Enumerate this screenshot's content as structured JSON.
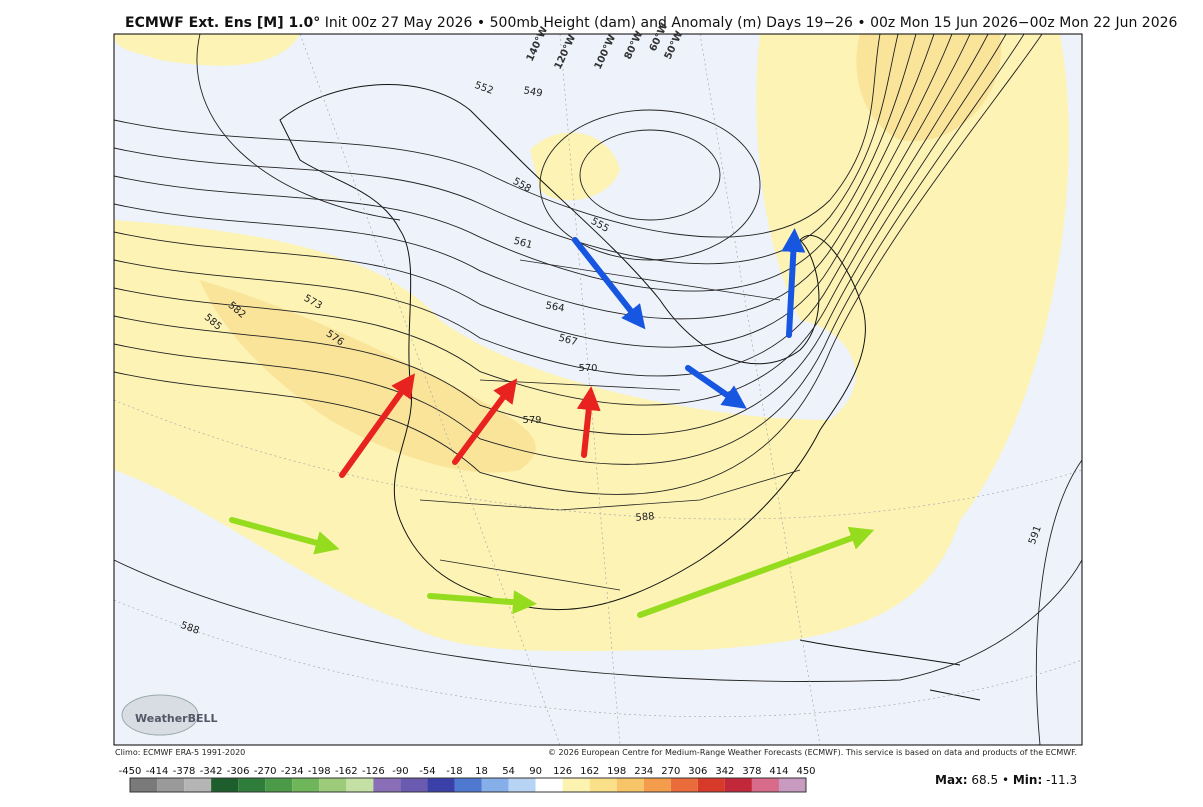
{
  "header": {
    "title_bold": "ECMWF Ext. Ens [M] 1.0°",
    "title_rest": "Init 00z 27 May 2026 • 500mb Height (dam) and Anomaly (m) Days 19−26 • 00z Mon 15 Jun 2026−00z Mon 22 Jun 2026"
  },
  "map": {
    "contour_labels": [
      552,
      549,
      558,
      555,
      561,
      564,
      567,
      570,
      573,
      576,
      579,
      582,
      585,
      588,
      588,
      591
    ],
    "longitude_labels": [
      "140°W",
      "120°W",
      "100°W",
      "80°W",
      "60°W",
      "50°W"
    ],
    "logo": "WeatherBELL"
  },
  "footer": {
    "climo": "Climo: ECMWF ERA-5 1991-2020",
    "copyright": "© 2026 European Centre for Medium-Range Weather Forecasts (ECMWF). This service is based on data and products of the ECMWF."
  },
  "colorbar": {
    "ticks": [
      -450,
      -414,
      -378,
      -342,
      -306,
      -270,
      -234,
      -198,
      -162,
      -126,
      -90,
      -54,
      -18,
      18,
      54,
      90,
      126,
      162,
      198,
      234,
      270,
      306,
      342,
      378,
      414,
      450
    ],
    "colors": [
      "#7a7a7a",
      "#9a9a9a",
      "#b5b5b5",
      "#1d5e2c",
      "#2e7d3a",
      "#4a9a47",
      "#6fb55a",
      "#9ccc7a",
      "#c4e0a4",
      "#8a6fb8",
      "#6a5ab0",
      "#3b3fa8",
      "#4f78d0",
      "#86aee8",
      "#b8d4f4",
      "#ffffff",
      "#fdf3b0",
      "#fbe08a",
      "#f7c468",
      "#f29c4c",
      "#ea6c3a",
      "#d83a2a",
      "#c2273a",
      "#d86a8a",
      "#c89ac0"
    ]
  },
  "stats": {
    "max_label": "Max:",
    "max": 68.5,
    "sep": "•",
    "min_label": "Min:",
    "min": -11.3
  }
}
